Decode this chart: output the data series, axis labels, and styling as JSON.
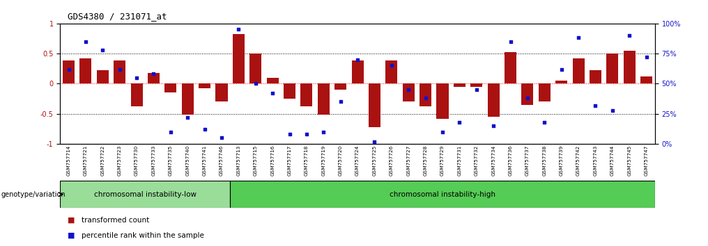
{
  "title": "GDS4380 / 231071_at",
  "samples": [
    "GSM757714",
    "GSM757721",
    "GSM757722",
    "GSM757723",
    "GSM757730",
    "GSM757733",
    "GSM757735",
    "GSM757740",
    "GSM757741",
    "GSM757746",
    "GSM757713",
    "GSM757715",
    "GSM757716",
    "GSM757717",
    "GSM757718",
    "GSM757719",
    "GSM757720",
    "GSM757724",
    "GSM757725",
    "GSM757726",
    "GSM757727",
    "GSM757728",
    "GSM757729",
    "GSM757731",
    "GSM757732",
    "GSM757734",
    "GSM757736",
    "GSM757737",
    "GSM757738",
    "GSM757739",
    "GSM757742",
    "GSM757743",
    "GSM757744",
    "GSM757745",
    "GSM757747"
  ],
  "bar_values": [
    0.38,
    0.42,
    0.22,
    0.38,
    -0.38,
    0.18,
    -0.15,
    -0.52,
    -0.08,
    -0.3,
    0.82,
    0.5,
    0.1,
    -0.25,
    -0.38,
    -0.52,
    -0.1,
    0.38,
    -0.72,
    0.38,
    -0.3,
    -0.38,
    -0.58,
    -0.05,
    -0.05,
    -0.55,
    0.52,
    -0.35,
    -0.3,
    0.05,
    0.42,
    0.22,
    0.5,
    0.55,
    0.12
  ],
  "percentile_values": [
    0.62,
    0.85,
    0.78,
    0.62,
    0.55,
    0.58,
    0.1,
    0.22,
    0.12,
    0.05,
    0.95,
    0.5,
    0.42,
    0.08,
    0.08,
    0.1,
    0.35,
    0.7,
    0.02,
    0.65,
    0.45,
    0.38,
    0.1,
    0.18,
    0.45,
    0.15,
    0.85,
    0.38,
    0.18,
    0.62,
    0.88,
    0.32,
    0.28,
    0.9,
    0.72
  ],
  "group_low_count": 10,
  "group_high_count": 25,
  "group_low_label": "chromosomal instability-low",
  "group_high_label": "chromosomal instability-high",
  "bar_color": "#aa1111",
  "dot_color": "#1111cc",
  "group_low_color": "#99dd99",
  "group_high_color": "#55cc55",
  "tick_bg_color": "#cccccc",
  "fig_bg": "#ffffff"
}
